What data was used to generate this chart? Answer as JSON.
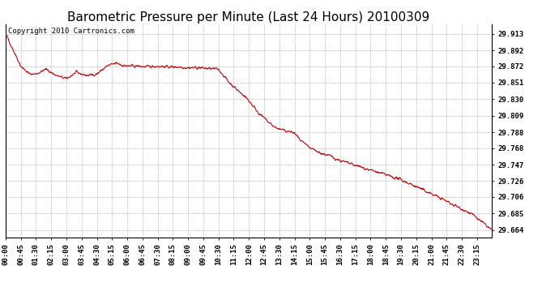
{
  "title": "Barometric Pressure per Minute (Last 24 Hours) 20100309",
  "copyright_text": "Copyright 2010 Cartronics.com",
  "line_color": "#cc0000",
  "background_color": "#ffffff",
  "plot_background": "#ffffff",
  "grid_color": "#aaaaaa",
  "y_ticks": [
    29.664,
    29.685,
    29.706,
    29.726,
    29.747,
    29.768,
    29.788,
    29.809,
    29.83,
    29.851,
    29.872,
    29.892,
    29.913
  ],
  "y_min": 29.655,
  "y_max": 29.925,
  "x_tick_labels": [
    "00:00",
    "00:45",
    "01:30",
    "02:15",
    "03:00",
    "03:45",
    "04:30",
    "05:15",
    "06:00",
    "06:45",
    "07:30",
    "08:15",
    "09:00",
    "09:45",
    "10:30",
    "11:15",
    "12:00",
    "12:45",
    "13:30",
    "14:15",
    "15:00",
    "15:45",
    "16:30",
    "17:15",
    "18:00",
    "18:45",
    "19:30",
    "20:15",
    "21:00",
    "21:45",
    "22:30",
    "23:15"
  ],
  "title_fontsize": 11,
  "tick_fontsize": 6.5,
  "copyright_fontsize": 6.5,
  "cp_t": [
    0,
    20,
    45,
    70,
    90,
    120,
    150,
    180,
    210,
    240,
    270,
    300,
    315,
    330,
    345,
    360,
    390,
    420,
    450,
    480,
    510,
    540,
    570,
    600,
    630,
    645,
    660,
    675,
    690,
    705,
    720,
    735,
    750,
    765,
    780,
    795,
    810,
    825,
    840,
    855,
    870,
    885,
    900,
    915,
    930,
    945,
    960,
    975,
    990,
    1005,
    1020,
    1050,
    1080,
    1110,
    1140,
    1170,
    1200,
    1230,
    1260,
    1290,
    1320,
    1350,
    1380,
    1410,
    1439
  ],
  "cp_v": [
    29.913,
    29.895,
    29.872,
    29.862,
    29.862,
    29.868,
    29.86,
    29.856,
    29.864,
    29.86,
    29.862,
    29.872,
    29.874,
    29.876,
    29.873,
    29.872,
    29.872,
    29.871,
    29.872,
    29.871,
    29.871,
    29.87,
    29.87,
    29.869,
    29.868,
    29.86,
    29.852,
    29.846,
    29.84,
    29.835,
    29.828,
    29.82,
    29.812,
    29.806,
    29.8,
    29.795,
    29.792,
    29.79,
    29.789,
    29.787,
    29.779,
    29.773,
    29.768,
    29.765,
    29.762,
    29.76,
    29.758,
    29.755,
    29.752,
    29.75,
    29.748,
    29.744,
    29.74,
    29.736,
    29.732,
    29.728,
    29.722,
    29.716,
    29.71,
    29.704,
    29.697,
    29.691,
    29.684,
    29.674,
    29.664
  ]
}
